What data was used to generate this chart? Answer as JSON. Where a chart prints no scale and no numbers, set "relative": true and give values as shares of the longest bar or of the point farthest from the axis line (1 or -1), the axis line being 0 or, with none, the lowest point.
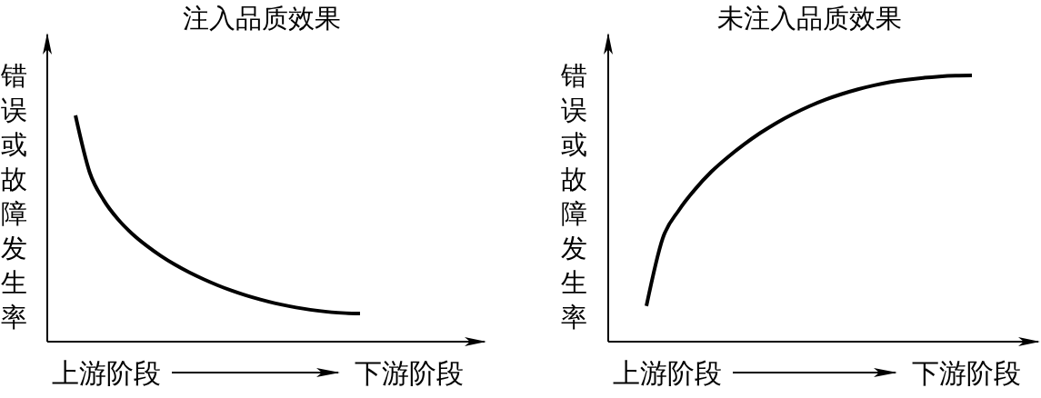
{
  "chart_data": [
    {
      "type": "line",
      "title": "注入品质效果",
      "ylabel": "错误或故障发生率",
      "annotations": [
        "上游阶段",
        "下游阶段"
      ],
      "relative": true,
      "categories": [
        null,
        null,
        null,
        null,
        null,
        null,
        null,
        null,
        null,
        null,
        null,
        null,
        null,
        null,
        null,
        null,
        null,
        null,
        null,
        null,
        null
      ],
      "series": [
        {
          "color": "#000000",
          "values": [
            1.0,
            0.748,
            0.624,
            0.54,
            0.476,
            0.424,
            0.379,
            0.34,
            0.306,
            0.276,
            0.249,
            0.225,
            0.204,
            0.186,
            0.17,
            0.157,
            0.146,
            0.137,
            0.13,
            0.126,
            0.124
          ]
        }
      ]
    },
    {
      "type": "line",
      "title": "未注入品质效果",
      "ylabel": "错误或故障发生率",
      "annotations": [
        "上游阶段",
        "下游阶段"
      ],
      "relative": true,
      "categories": [
        null,
        null,
        null,
        null,
        null,
        null,
        null,
        null,
        null,
        null,
        null,
        null,
        null,
        null,
        null,
        null,
        null,
        null,
        null,
        null,
        null
      ],
      "series": [
        {
          "color": "#000000",
          "values": [
            0.134,
            0.388,
            0.494,
            0.573,
            0.639,
            0.693,
            0.741,
            0.784,
            0.822,
            0.855,
            0.884,
            0.909,
            0.93,
            0.948,
            0.963,
            0.975,
            0.984,
            0.991,
            0.996,
            0.999,
            1.0
          ]
        }
      ]
    }
  ]
}
